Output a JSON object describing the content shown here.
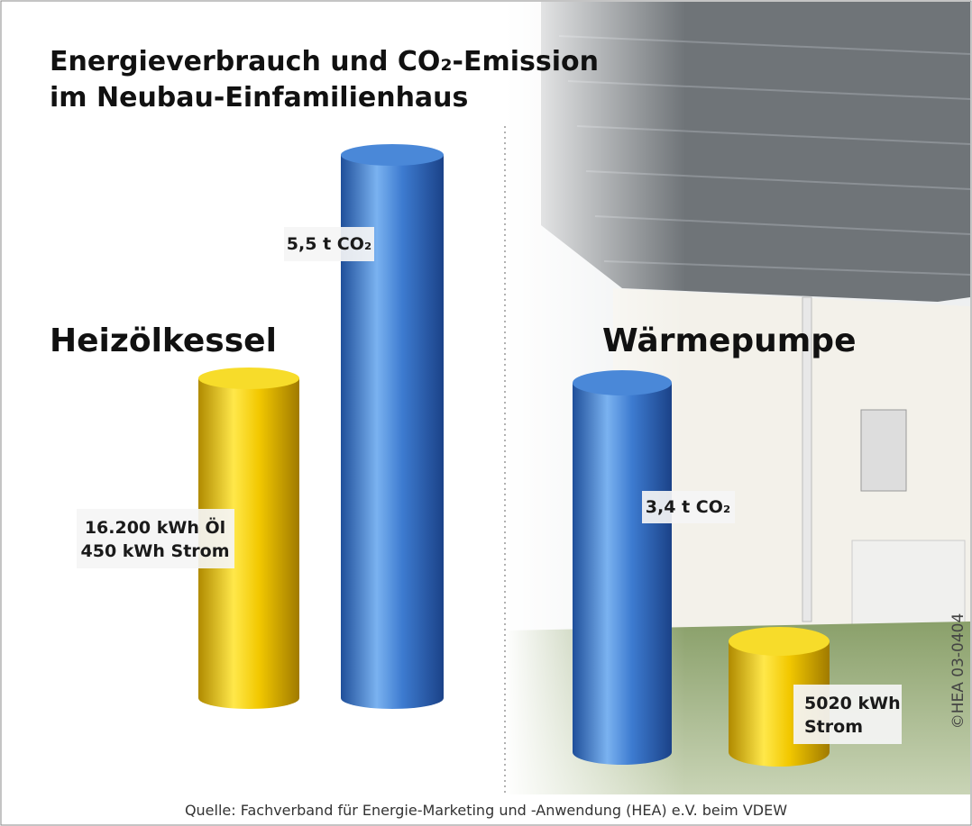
{
  "title": {
    "line1": "Energieverbrauch und CO₂-Emission",
    "line2": "im Neubau-Einfamilienhaus"
  },
  "groups": [
    {
      "name": "Heizölkessel",
      "co2_label": "5,5 t CO₂",
      "energy_label": [
        "16.200 kWh Öl",
        "450 kWh Strom"
      ]
    },
    {
      "name": "Wärmepumpe",
      "co2_label": "3,4 t CO₂",
      "energy_label": [
        "5020 kWh",
        "Strom"
      ]
    }
  ],
  "copyright": "©HEA 03-0404",
  "source": "Quelle: Fachverband für Energie-Marketing und -Anwendung (HEA) e.V. beim VDEW"
}
